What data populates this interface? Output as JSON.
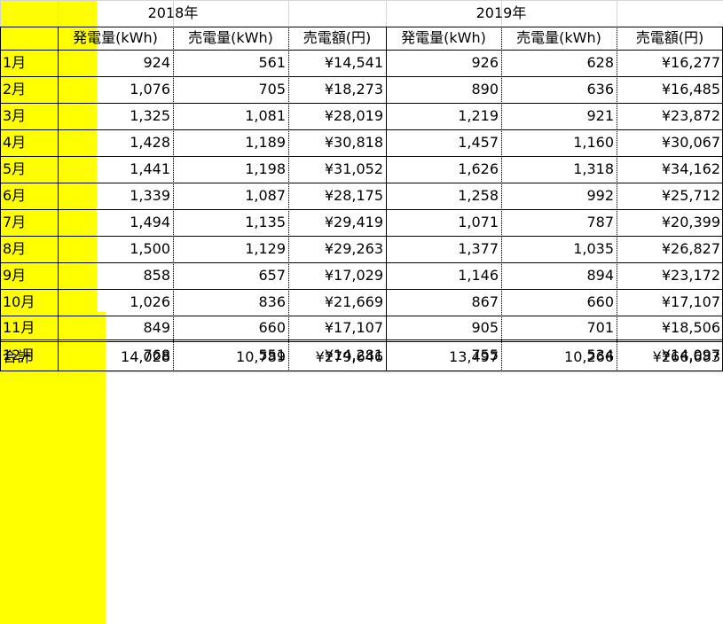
{
  "years": [
    "2018年",
    "2019年"
  ],
  "headers": [
    "発電量(kWh)",
    "売電量(kWh)",
    "売電額(円)",
    "発電量(kWh)",
    "売電量(kWh)",
    "売電額(円)"
  ],
  "rows": [
    {
      "month": "1月",
      "v": [
        "924",
        "561",
        "¥14,541",
        "926",
        "628",
        "¥16,277"
      ]
    },
    {
      "month": "2月",
      "v": [
        "1,076",
        "705",
        "¥18,273",
        "890",
        "636",
        "¥16,485"
      ]
    },
    {
      "month": "3月",
      "v": [
        "1,325",
        "1,081",
        "¥28,019",
        "1,219",
        "921",
        "¥23,872"
      ]
    },
    {
      "month": "4月",
      "v": [
        "1,428",
        "1,189",
        "¥30,818",
        "1,457",
        "1,160",
        "¥30,067"
      ]
    },
    {
      "month": "5月",
      "v": [
        "1,441",
        "1,198",
        "¥31,052",
        "1,626",
        "1,318",
        "¥34,162"
      ]
    },
    {
      "month": "6月",
      "v": [
        "1,339",
        "1,087",
        "¥28,175",
        "1,258",
        "992",
        "¥25,712"
      ]
    },
    {
      "month": "7月",
      "v": [
        "1,494",
        "1,135",
        "¥29,419",
        "1,071",
        "787",
        "¥20,399"
      ]
    },
    {
      "month": "8月",
      "v": [
        "1,500",
        "1,129",
        "¥29,263",
        "1,377",
        "1,035",
        "¥26,827"
      ]
    },
    {
      "month": "9月",
      "v": [
        "858",
        "657",
        "¥17,029",
        "1,146",
        "894",
        "¥23,172"
      ]
    },
    {
      "month": "10月",
      "v": [
        "1,026",
        "836",
        "¥21,669",
        "867",
        "660",
        "¥17,107"
      ]
    },
    {
      "month": "11月",
      "v": [
        "849",
        "660",
        "¥17,107",
        "905",
        "701",
        "¥18,506"
      ]
    },
    {
      "month": "12月",
      "v": [
        "768",
        "551",
        "¥14,281",
        "755",
        "534",
        "¥14,097"
      ]
    }
  ],
  "total": {
    "label": "合計",
    "v": [
      "14,028",
      "10,789",
      "¥279,646",
      "13,497",
      "10,266",
      "¥266,683"
    ]
  },
  "colors": {
    "highlight": "#ffff00",
    "gridline": "#d4d4d4",
    "border": "#000000"
  }
}
